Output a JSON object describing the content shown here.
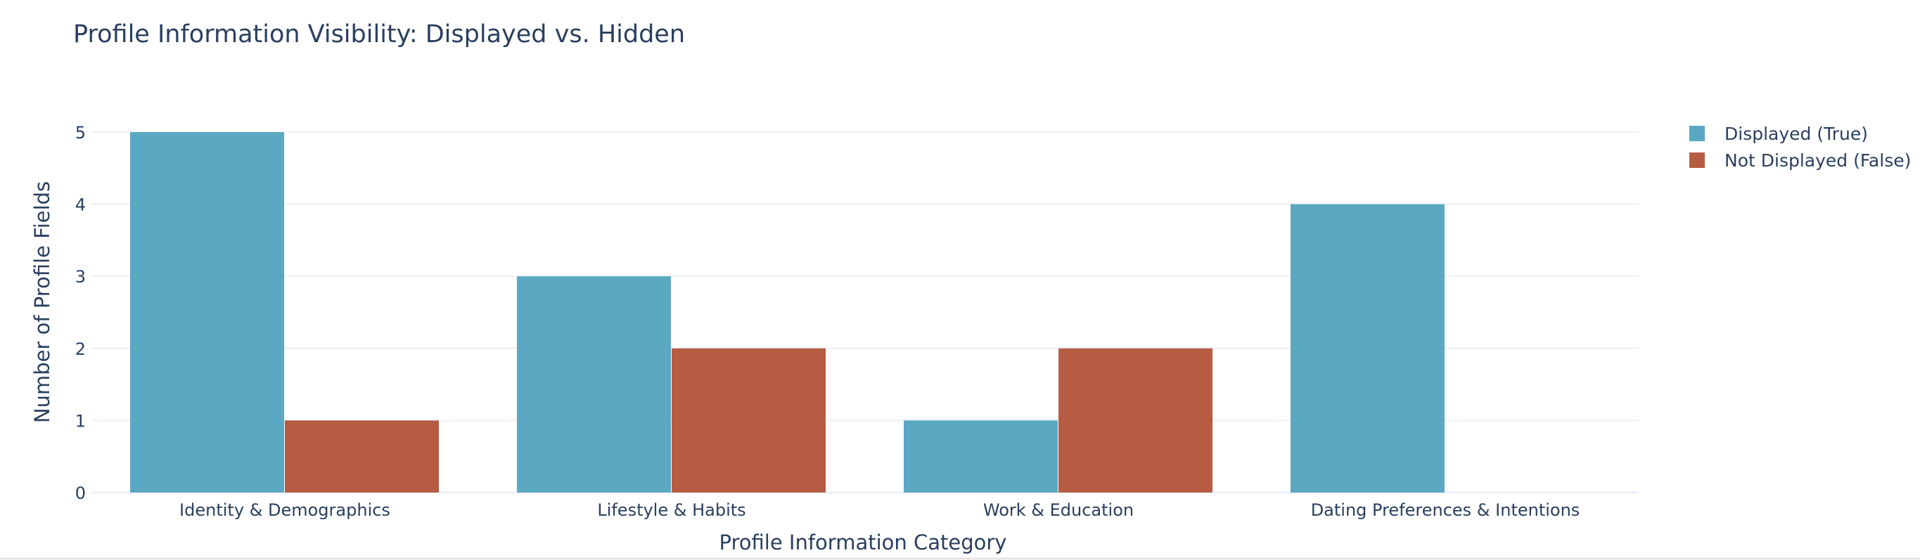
{
  "chart_data": {
    "type": "bar",
    "barmode": "group",
    "title": "Profile Information Visibility: Displayed vs. Hidden",
    "xlabel": "Profile Information Category",
    "ylabel": "Number of Profile Fields",
    "categories": [
      "Identity & Demographics",
      "Lifestyle & Habits",
      "Work & Education",
      "Dating Preferences & Intentions"
    ],
    "series": [
      {
        "name": "Displayed (True)",
        "values": [
          5,
          3,
          1,
          4
        ],
        "color": "#5ba8c2"
      },
      {
        "name": "Not Displayed (False)",
        "values": [
          1,
          2,
          2,
          0
        ],
        "color": "#b55c43"
      }
    ],
    "ylim": [
      0,
      5
    ],
    "yticks": [
      0,
      1,
      2,
      3,
      4,
      5
    ],
    "grid": true,
    "legend_position": "top-right"
  }
}
